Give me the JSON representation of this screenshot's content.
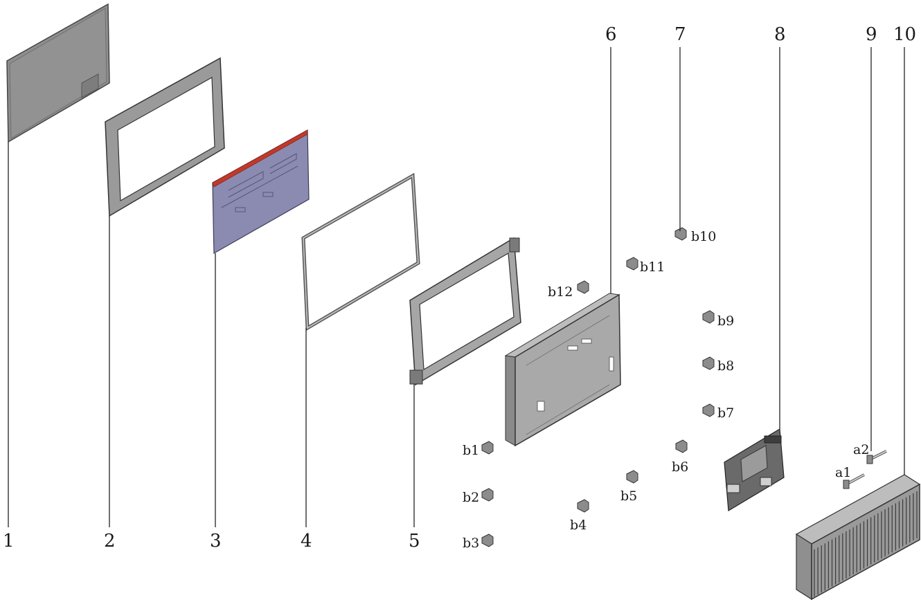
{
  "parts": [
    {
      "id": "p1",
      "label": "1",
      "name": "touch-glass-panel"
    },
    {
      "id": "p2",
      "label": "2",
      "name": "front-bezel"
    },
    {
      "id": "p3",
      "label": "3",
      "name": "lcd-module"
    },
    {
      "id": "p4",
      "label": "4",
      "name": "gasket-ring"
    },
    {
      "id": "p5",
      "label": "5",
      "name": "mounting-frame"
    },
    {
      "id": "p6",
      "label": "6",
      "name": "rear-chassis-plate"
    },
    {
      "id": "p7",
      "label": "7",
      "name": "clip-leader"
    },
    {
      "id": "p8",
      "label": "8",
      "name": "mainboard"
    },
    {
      "id": "p9",
      "label": "9",
      "name": "standoff-leader"
    },
    {
      "id": "p10",
      "label": "10",
      "name": "heatsink-enclosure"
    }
  ],
  "clips": [
    "b1",
    "b2",
    "b3",
    "b4",
    "b5",
    "b6",
    "b7",
    "b8",
    "b9",
    "b10",
    "b11",
    "b12"
  ],
  "screws": [
    "a1",
    "a2"
  ],
  "colors": {
    "line": "#222222",
    "panel_fill": "#8f8f8f",
    "metal_fill": "#a9a9a9",
    "lcd_fill": "#8a8ab0",
    "lcd_edge": "#c0392b",
    "board_fill": "#5a5a5a"
  }
}
